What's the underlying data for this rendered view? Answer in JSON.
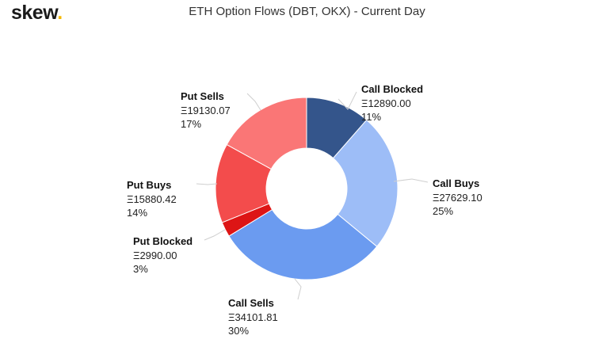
{
  "brand": {
    "name": "skew",
    "dot": ".",
    "dot_color": "#f5b800"
  },
  "chart_data": {
    "type": "pie",
    "title": "ETH Option Flows (DBT, OKX) - Current Day",
    "slices": [
      {
        "label": "Call Blocked",
        "value_text": "Ξ12890.00",
        "value": 12890.0,
        "pct_text": "11%",
        "color": "#34558b"
      },
      {
        "label": "Call Buys",
        "value_text": "Ξ27629.10",
        "value": 27629.1,
        "pct_text": "25%",
        "color": "#9dbdf7"
      },
      {
        "label": "Call Sells",
        "value_text": "Ξ34101.81",
        "value": 34101.81,
        "pct_text": "30%",
        "color": "#6b9bf0"
      },
      {
        "label": "Put Blocked",
        "value_text": "Ξ2990.00",
        "value": 2990.0,
        "pct_text": "3%",
        "color": "#dd1515"
      },
      {
        "label": "Put Buys",
        "value_text": "Ξ15880.42",
        "value": 15880.42,
        "pct_text": "14%",
        "color": "#f34c4c"
      },
      {
        "label": "Put Sells",
        "value_text": "Ξ19130.07",
        "value": 19130.07,
        "pct_text": "17%",
        "color": "#fa7676"
      }
    ]
  }
}
